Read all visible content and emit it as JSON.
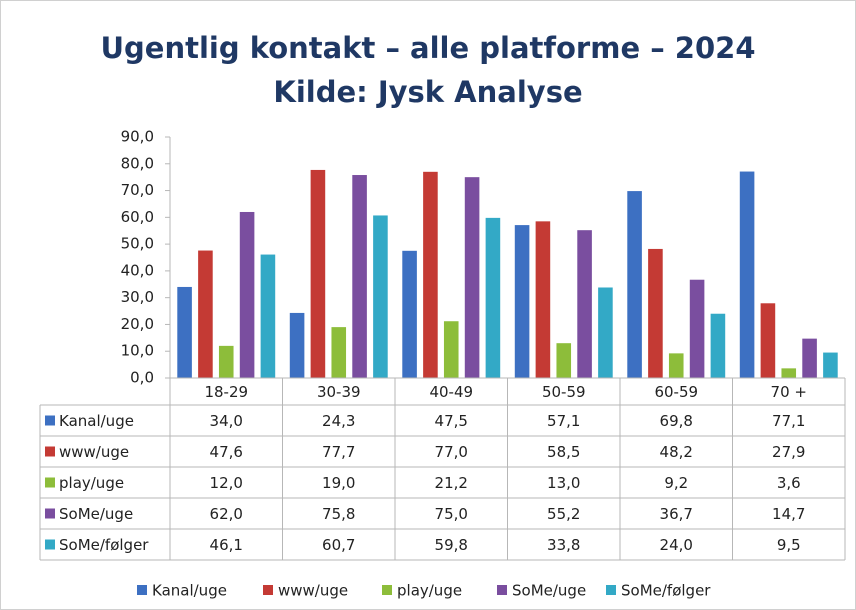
{
  "chart_data": {
    "type": "bar",
    "title": "Ugentlig kontakt – alle platforme – 2024",
    "subtitle": "Kilde: Jysk Analyse",
    "categories": [
      "18-29",
      "30-39",
      "40-49",
      "50-59",
      "60-59",
      "70 +"
    ],
    "series": [
      {
        "name": "Kanal/uge",
        "color": "#3d70c2",
        "values": [
          34.0,
          24.3,
          47.5,
          57.1,
          69.8,
          77.1
        ],
        "value_labels": [
          "34,0",
          "24,3",
          "47,5",
          "57,1",
          "69,8",
          "77,1"
        ]
      },
      {
        "name": "www/uge",
        "color": "#c43a34",
        "values": [
          47.6,
          77.7,
          77.0,
          58.5,
          48.2,
          27.9
        ],
        "value_labels": [
          "47,6",
          "77,7",
          "77,0",
          "58,5",
          "48,2",
          "27,9"
        ]
      },
      {
        "name": "play/uge",
        "color": "#8dbd3a",
        "values": [
          12.0,
          19.0,
          21.2,
          13.0,
          9.2,
          3.6
        ],
        "value_labels": [
          "12,0",
          "19,0",
          "21,2",
          "13,0",
          "9,2",
          "3,6"
        ]
      },
      {
        "name": "SoMe/uge",
        "color": "#7a4e9f",
        "values": [
          62.0,
          75.8,
          75.0,
          55.2,
          36.7,
          14.7
        ],
        "value_labels": [
          "62,0",
          "75,8",
          "75,0",
          "55,2",
          "36,7",
          "14,7"
        ]
      },
      {
        "name": "SoMe/følger",
        "color": "#33a9c6",
        "values": [
          46.1,
          60.7,
          59.8,
          33.8,
          24.0,
          9.5
        ],
        "value_labels": [
          "46,1",
          "60,7",
          "59,8",
          "33,8",
          "24,0",
          "9,5"
        ]
      }
    ],
    "ylim": [
      0,
      90
    ],
    "yticks": [
      {
        "value": 0,
        "label": "0,0"
      },
      {
        "value": 10,
        "label": "10,0"
      },
      {
        "value": 20,
        "label": "20,0"
      },
      {
        "value": 30,
        "label": "30,0"
      },
      {
        "value": 40,
        "label": "40,0"
      },
      {
        "value": 50,
        "label": "50,0"
      },
      {
        "value": 60,
        "label": "60,0"
      },
      {
        "value": 70,
        "label": "70,0"
      },
      {
        "value": 80,
        "label": "80,0"
      },
      {
        "value": 90,
        "label": "90,0"
      }
    ],
    "grid": false
  }
}
